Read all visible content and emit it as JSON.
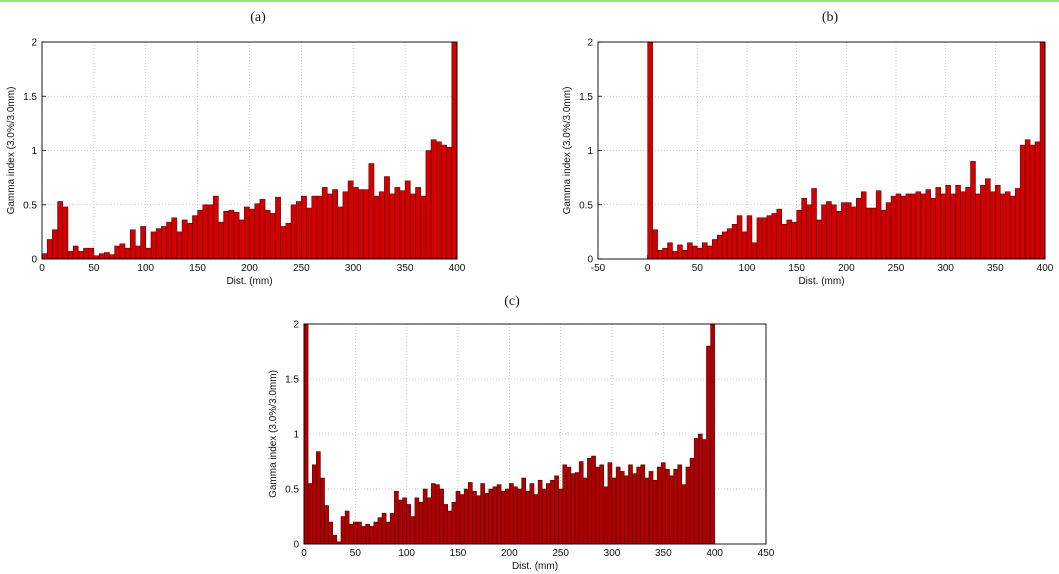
{
  "chart_data": [
    {
      "type": "bar",
      "title": "(a)",
      "xlabel": "Dist. (mm)",
      "ylabel": "Gamma index (3.0%/3.0mm)",
      "color": "#d40000",
      "grid": true,
      "xlim": [
        0,
        400
      ],
      "xticks": [
        0,
        50,
        100,
        150,
        200,
        250,
        300,
        350,
        400
      ],
      "ylim": [
        0,
        2
      ],
      "yticks": [
        0,
        0.5,
        1,
        1.5,
        2
      ],
      "x": [
        2.5,
        7.5,
        12.5,
        17.5,
        22.5,
        27.5,
        32.5,
        37.5,
        42.5,
        47.5,
        52.5,
        57.5,
        62.5,
        67.5,
        72.5,
        77.5,
        82.5,
        87.5,
        92.5,
        97.5,
        102.5,
        107.5,
        112.5,
        117.5,
        122.5,
        127.5,
        132.5,
        137.5,
        142.5,
        147.5,
        152.5,
        157.5,
        162.5,
        167.5,
        172.5,
        177.5,
        182.5,
        187.5,
        192.5,
        197.5,
        202.5,
        207.5,
        212.5,
        217.5,
        222.5,
        227.5,
        232.5,
        237.5,
        242.5,
        247.5,
        252.5,
        257.5,
        262.5,
        267.5,
        272.5,
        277.5,
        282.5,
        287.5,
        292.5,
        297.5,
        302.5,
        307.5,
        312.5,
        317.5,
        322.5,
        327.5,
        332.5,
        337.5,
        342.5,
        347.5,
        352.5,
        357.5,
        362.5,
        367.5,
        372.5,
        377.5,
        382.5,
        387.5,
        392.5,
        397.5
      ],
      "values": [
        0.05,
        0.18,
        0.27,
        0.53,
        0.48,
        0.07,
        0.12,
        0.07,
        0.1,
        0.1,
        0.03,
        0.05,
        0.06,
        0.04,
        0.12,
        0.14,
        0.1,
        0.27,
        0.12,
        0.3,
        0.1,
        0.25,
        0.28,
        0.3,
        0.34,
        0.38,
        0.25,
        0.36,
        0.33,
        0.4,
        0.45,
        0.5,
        0.5,
        0.58,
        0.34,
        0.44,
        0.45,
        0.43,
        0.36,
        0.48,
        0.46,
        0.51,
        0.55,
        0.45,
        0.42,
        0.57,
        0.3,
        0.33,
        0.5,
        0.53,
        0.58,
        0.47,
        0.58,
        0.58,
        0.66,
        0.6,
        0.64,
        0.48,
        0.62,
        0.72,
        0.66,
        0.64,
        0.64,
        0.88,
        0.58,
        0.62,
        0.76,
        0.6,
        0.66,
        0.63,
        0.72,
        0.6,
        0.66,
        0.58,
        1.0,
        1.1,
        1.08,
        1.05,
        1.03,
        2.0
      ]
    },
    {
      "type": "bar",
      "title": "(b)",
      "xlabel": "Dist. (mm)",
      "ylabel": "Gamma index (3.0%/3.0mm)",
      "color": "#d40000",
      "grid": true,
      "xlim": [
        -50,
        400
      ],
      "xticks": [
        -50,
        0,
        50,
        100,
        150,
        200,
        250,
        300,
        350,
        400
      ],
      "ylim": [
        0,
        2
      ],
      "yticks": [
        0,
        0.5,
        1,
        1.5,
        2
      ],
      "x": [
        2.5,
        7.5,
        12.5,
        17.5,
        22.5,
        27.5,
        32.5,
        37.5,
        42.5,
        47.5,
        52.5,
        57.5,
        62.5,
        67.5,
        72.5,
        77.5,
        82.5,
        87.5,
        92.5,
        97.5,
        102.5,
        107.5,
        112.5,
        117.5,
        122.5,
        127.5,
        132.5,
        137.5,
        142.5,
        147.5,
        152.5,
        157.5,
        162.5,
        167.5,
        172.5,
        177.5,
        182.5,
        187.5,
        192.5,
        197.5,
        202.5,
        207.5,
        212.5,
        217.5,
        222.5,
        227.5,
        232.5,
        237.5,
        242.5,
        247.5,
        252.5,
        257.5,
        262.5,
        267.5,
        272.5,
        277.5,
        282.5,
        287.5,
        292.5,
        297.5,
        302.5,
        307.5,
        312.5,
        317.5,
        322.5,
        327.5,
        332.5,
        337.5,
        342.5,
        347.5,
        352.5,
        357.5,
        362.5,
        367.5,
        372.5,
        377.5,
        382.5,
        387.5,
        392.5,
        397.5
      ],
      "values": [
        2.0,
        0.27,
        0.08,
        0.1,
        0.15,
        0.07,
        0.13,
        0.08,
        0.15,
        0.12,
        0.1,
        0.15,
        0.12,
        0.18,
        0.22,
        0.25,
        0.28,
        0.32,
        0.4,
        0.25,
        0.4,
        0.15,
        0.38,
        0.38,
        0.4,
        0.42,
        0.46,
        0.32,
        0.36,
        0.34,
        0.45,
        0.56,
        0.5,
        0.65,
        0.36,
        0.5,
        0.53,
        0.5,
        0.44,
        0.52,
        0.52,
        0.48,
        0.56,
        0.62,
        0.47,
        0.47,
        0.63,
        0.45,
        0.52,
        0.58,
        0.6,
        0.58,
        0.6,
        0.6,
        0.62,
        0.6,
        0.64,
        0.56,
        0.66,
        0.6,
        0.68,
        0.6,
        0.68,
        0.62,
        0.66,
        0.9,
        0.6,
        0.68,
        0.74,
        0.62,
        0.68,
        0.6,
        0.62,
        0.58,
        0.65,
        1.05,
        1.1,
        1.05,
        1.08,
        2.0
      ]
    },
    {
      "type": "bar",
      "title": "(c)",
      "xlabel": "Dist. (mm)",
      "ylabel": "Gamma index (3.0%/3.0mm)",
      "color": "#b00000",
      "grid": true,
      "xlim": [
        0,
        450
      ],
      "xticks": [
        0,
        50,
        100,
        150,
        200,
        250,
        300,
        350,
        400,
        450
      ],
      "ylim": [
        0,
        2
      ],
      "yticks": [
        0,
        0.5,
        1,
        1.5,
        2
      ],
      "x": [
        2,
        6,
        10,
        14,
        18,
        22,
        26,
        30,
        34,
        38,
        42,
        46,
        50,
        54,
        58,
        62,
        66,
        70,
        74,
        78,
        82,
        86,
        90,
        94,
        98,
        102,
        106,
        110,
        114,
        118,
        122,
        126,
        130,
        134,
        138,
        142,
        146,
        150,
        154,
        158,
        162,
        166,
        170,
        174,
        178,
        182,
        186,
        190,
        194,
        198,
        202,
        206,
        210,
        214,
        218,
        222,
        226,
        230,
        234,
        238,
        242,
        246,
        250,
        254,
        258,
        262,
        266,
        270,
        274,
        278,
        282,
        286,
        290,
        294,
        298,
        302,
        306,
        310,
        314,
        318,
        322,
        326,
        330,
        334,
        338,
        342,
        346,
        350,
        354,
        358,
        362,
        366,
        370,
        374,
        378,
        382,
        386,
        390,
        394,
        398
      ],
      "values": [
        2.0,
        0.55,
        0.72,
        0.84,
        0.6,
        0.35,
        0.2,
        0.08,
        0.02,
        0.25,
        0.3,
        0.18,
        0.2,
        0.2,
        0.16,
        0.18,
        0.16,
        0.2,
        0.24,
        0.28,
        0.2,
        0.28,
        0.48,
        0.4,
        0.42,
        0.36,
        0.25,
        0.42,
        0.38,
        0.5,
        0.42,
        0.55,
        0.54,
        0.5,
        0.36,
        0.3,
        0.38,
        0.48,
        0.45,
        0.5,
        0.56,
        0.48,
        0.44,
        0.55,
        0.46,
        0.5,
        0.52,
        0.54,
        0.48,
        0.5,
        0.55,
        0.52,
        0.5,
        0.6,
        0.48,
        0.55,
        0.45,
        0.58,
        0.5,
        0.55,
        0.58,
        0.62,
        0.5,
        0.72,
        0.7,
        0.64,
        0.65,
        0.75,
        0.6,
        0.78,
        0.8,
        0.7,
        0.72,
        0.52,
        0.74,
        0.6,
        0.7,
        0.66,
        0.62,
        0.72,
        0.64,
        0.7,
        0.72,
        0.6,
        0.66,
        0.58,
        0.7,
        0.74,
        0.68,
        0.62,
        0.68,
        0.72,
        0.54,
        0.7,
        0.78,
        0.96,
        1.0,
        0.95,
        1.8,
        2.0
      ]
    }
  ]
}
